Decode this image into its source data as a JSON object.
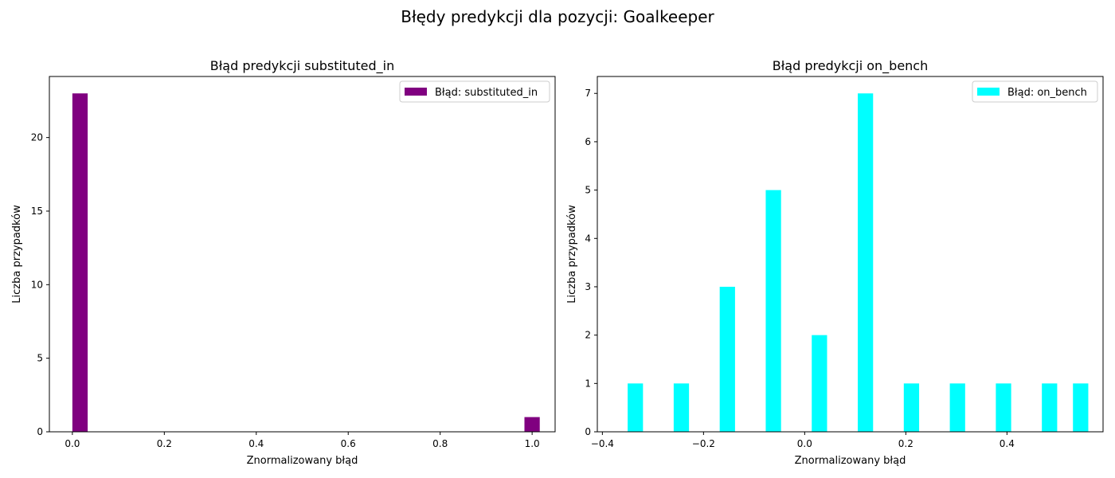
{
  "figure": {
    "suptitle": "Błędy predykcji dla pozycji: Goalkeeper"
  },
  "chart_data": [
    {
      "type": "bar",
      "title": "Błąd predykcji substituted_in",
      "xlabel": "Znormalizowany błąd",
      "ylabel": "Liczba przypadków",
      "xlim": [
        -0.05,
        1.05
      ],
      "ylim": [
        0,
        24.15
      ],
      "bar_width": 0.0333,
      "x": [
        0.0,
        0.9833
      ],
      "values": [
        23,
        1
      ],
      "xticks": [
        0.0,
        0.2,
        0.4,
        0.6,
        0.8,
        1.0
      ],
      "xtick_labels": [
        "0.0",
        "0.2",
        "0.4",
        "0.6",
        "0.8",
        "1.0"
      ],
      "yticks": [
        0,
        5,
        10,
        15,
        20
      ],
      "ytick_labels": [
        "0",
        "5",
        "10",
        "15",
        "20"
      ],
      "series": [
        {
          "name": "Błąd: substituted_in",
          "color": "#800080"
        }
      ],
      "legend": "upper right",
      "grid": false
    },
    {
      "type": "bar",
      "title": "Błąd predykcji on_bench",
      "xlabel": "Znormalizowany błąd",
      "ylabel": "Liczba przypadków",
      "xlim": [
        -0.41,
        0.59
      ],
      "ylim": [
        0,
        7.35
      ],
      "bar_width": 0.0303,
      "x": [
        -0.35,
        -0.259,
        -0.168,
        -0.077,
        0.014,
        0.105,
        0.196,
        0.287,
        0.378,
        0.469,
        0.5305
      ],
      "values": [
        1,
        1,
        3,
        5,
        2,
        7,
        1,
        1,
        1,
        1,
        1
      ],
      "xticks": [
        -0.4,
        -0.2,
        0.0,
        0.2,
        0.4
      ],
      "xtick_labels": [
        "−0.4",
        "−0.2",
        "0.0",
        "0.2",
        "0.4"
      ],
      "yticks": [
        0,
        1,
        2,
        3,
        4,
        5,
        6,
        7
      ],
      "ytick_labels": [
        "0",
        "1",
        "2",
        "3",
        "4",
        "5",
        "6",
        "7"
      ],
      "series": [
        {
          "name": "Błąd: on_bench",
          "color": "#00ffff"
        }
      ],
      "legend": "upper right",
      "grid": false
    }
  ]
}
